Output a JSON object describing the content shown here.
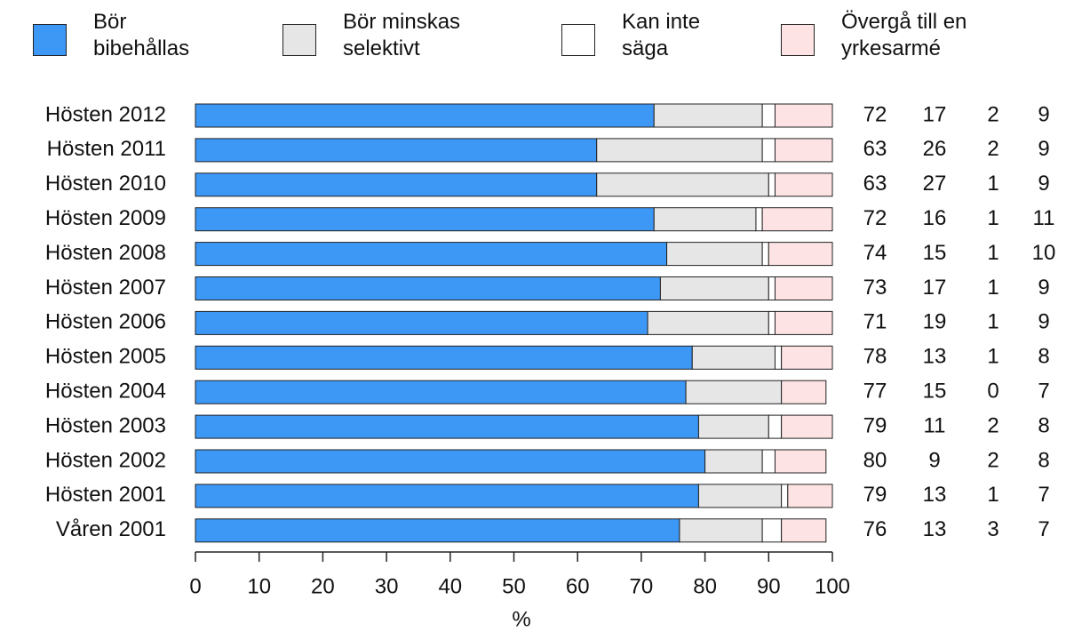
{
  "chart_data": {
    "type": "bar",
    "orientation": "horizontal",
    "stacked": true,
    "categories": [
      "Hösten 2012",
      "Hösten 2011",
      "Hösten 2010",
      "Hösten 2009",
      "Hösten 2008",
      "Hösten 2007",
      "Hösten 2006",
      "Hösten 2005",
      "Hösten 2004",
      "Hösten 2003",
      "Hösten 2002",
      "Hösten 2001",
      "Våren 2001"
    ],
    "series": [
      {
        "name": "Bör bibehållas",
        "color": "#3d97f5",
        "values": [
          72,
          63,
          63,
          72,
          74,
          73,
          71,
          78,
          77,
          79,
          80,
          79,
          76
        ]
      },
      {
        "name": "Bör minskas selektivt",
        "color": "#e6e6e6",
        "values": [
          17,
          26,
          27,
          16,
          15,
          17,
          19,
          13,
          15,
          11,
          9,
          13,
          13
        ]
      },
      {
        "name": "Kan inte säga",
        "color": "#ffffff",
        "values": [
          2,
          2,
          1,
          1,
          1,
          1,
          1,
          1,
          0,
          2,
          2,
          1,
          3
        ]
      },
      {
        "name": "Övergå till en yrkesarmé",
        "color": "#fde3e3",
        "values": [
          9,
          9,
          9,
          11,
          10,
          9,
          9,
          8,
          7,
          8,
          8,
          7,
          7
        ]
      }
    ],
    "xlim": [
      0,
      100
    ],
    "xticks": [
      0,
      10,
      20,
      30,
      40,
      50,
      60,
      70,
      80,
      90,
      100
    ],
    "xlabel": "%"
  }
}
